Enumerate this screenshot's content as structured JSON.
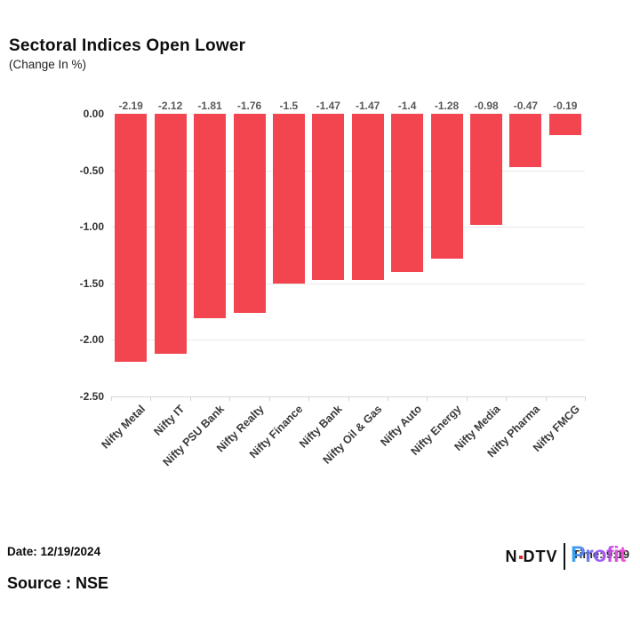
{
  "header": {
    "title": "Sectoral Indices Open Lower",
    "subtitle": "(Change In %)"
  },
  "chart_data": {
    "type": "bar",
    "title": "Sectoral Indices Open Lower",
    "subtitle": "(Change In %)",
    "categories": [
      "Nifty Metal",
      "Nifty IT",
      "Nifty PSU Bank",
      "Nifty Realty",
      "Nifty Finance",
      "Nifty Bank",
      "Nifty Oil & Gas",
      "Nifty Auto",
      "Nifty Energy",
      "Nifty Media",
      "Nifty Pharma",
      "Nifty FMCG"
    ],
    "values": [
      -2.19,
      -2.12,
      -1.81,
      -1.76,
      -1.5,
      -1.47,
      -1.47,
      -1.4,
      -1.28,
      -0.98,
      -0.47,
      -0.19
    ],
    "value_labels": [
      "-2.19",
      "-2.12",
      "-1.81",
      "-1.76",
      "-1.5",
      "-1.47",
      "-1.47",
      "-1.4",
      "-1.28",
      "-0.98",
      "-0.47",
      "-0.19"
    ],
    "y_ticks": [
      0,
      -0.5,
      -1,
      -1.5,
      -2,
      -2.5
    ],
    "y_tick_labels": [
      "0.00",
      "-0.50",
      "-1.00",
      "-1.50",
      "-2.00",
      "-2.50"
    ],
    "ylim": [
      0,
      -2.5
    ],
    "xlabel": "",
    "ylabel": "",
    "grid": true,
    "legend": "none",
    "bar_color": "#F2454F"
  },
  "footer": {
    "date_label": "Date: 12/19/2024",
    "time_label": "Time: 9:19",
    "source_label": "Source : NSE",
    "logo": {
      "brand_n": "N",
      "brand_dtv": "DTV",
      "product": "Profit"
    }
  },
  "colors": {
    "bar": "#F2454F",
    "value_label": "#595959",
    "tick_label": "#333333",
    "gridline": "#E8E8E8",
    "axis_line": "#D4D4D4"
  }
}
